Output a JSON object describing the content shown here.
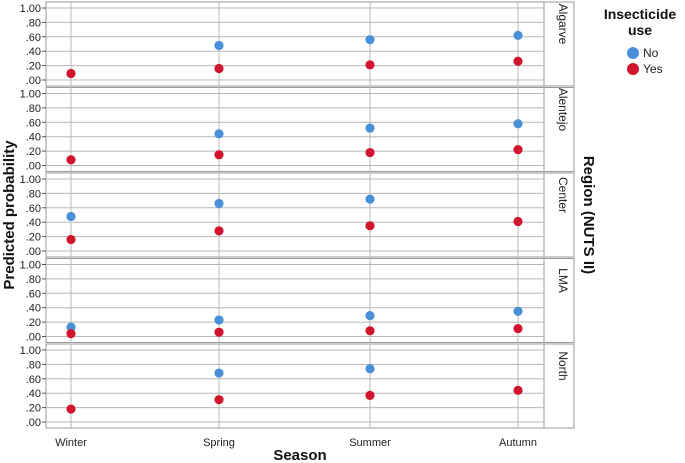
{
  "chart_data": {
    "type": "scatter",
    "title": "",
    "xlabel": "Season",
    "ylabel": "Predicted probability",
    "facet_axis_label": "Region (NUTS II)",
    "categories": [
      "Winter",
      "Spring",
      "Summer",
      "Autumn"
    ],
    "ylim": [
      0,
      1
    ],
    "yticks": [
      ".00",
      ".20",
      ".40",
      ".60",
      ".80",
      "1.00"
    ],
    "grid": true,
    "legend": {
      "title_lines": [
        "Insecticide",
        "use"
      ],
      "placement": "top-right",
      "entries": [
        {
          "label": "No",
          "color": "#4a90d9"
        },
        {
          "label": "Yes",
          "color": "#d2152e"
        }
      ]
    },
    "facets": [
      {
        "name": "Algarve",
        "no": [
          null,
          0.48,
          0.56,
          0.62
        ],
        "yes": [
          0.09,
          0.16,
          0.21,
          0.26
        ]
      },
      {
        "name": "Alentejo",
        "no": [
          null,
          0.44,
          0.52,
          0.58
        ],
        "yes": [
          0.08,
          0.15,
          0.18,
          0.22
        ]
      },
      {
        "name": "Center",
        "no": [
          0.48,
          0.66,
          0.72,
          null
        ],
        "yes": [
          0.16,
          0.28,
          0.35,
          0.41
        ]
      },
      {
        "name": "LMA",
        "no": [
          0.13,
          0.23,
          0.29,
          0.35
        ],
        "yes": [
          0.04,
          0.06,
          0.08,
          0.11
        ]
      },
      {
        "name": "North",
        "no": [
          null,
          0.68,
          0.74,
          null
        ],
        "yes": [
          0.18,
          0.31,
          0.37,
          0.44
        ]
      }
    ]
  }
}
